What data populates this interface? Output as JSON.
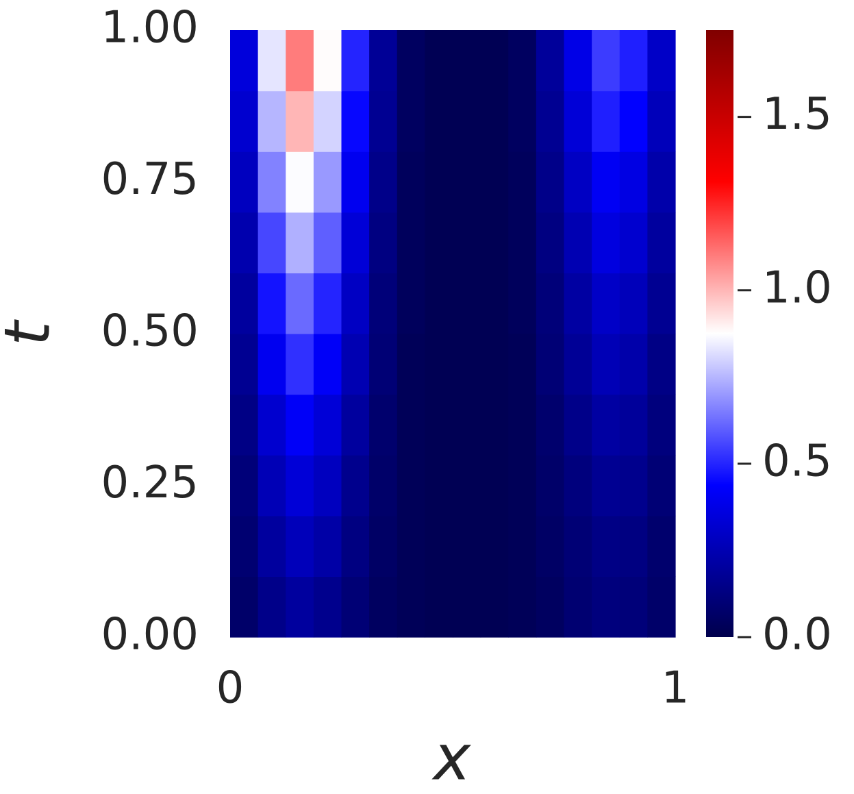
{
  "chart_data": {
    "type": "heatmap",
    "xlabel": "x",
    "ylabel": "t",
    "xlim": [
      0,
      1
    ],
    "xticks": [
      0,
      1
    ],
    "ylim": [
      0,
      1
    ],
    "yticks": [
      {
        "value": 0,
        "label": "0.00"
      },
      {
        "value": 0.25,
        "label": "0.25"
      },
      {
        "value": 0.5,
        "label": "0.50"
      },
      {
        "value": 0.75,
        "label": "0.75"
      },
      {
        "value": 1,
        "label": "1.00"
      }
    ],
    "clim": [
      0,
      1.75
    ],
    "cticks": [
      {
        "value": 0,
        "label": "0.0"
      },
      {
        "value": 0.5,
        "label": "0.5"
      },
      {
        "value": 1,
        "label": "1.0"
      },
      {
        "value": 1.5,
        "label": "1.5"
      }
    ],
    "colors": [
      "#00004c",
      "#0000ff",
      "#ffffff",
      "#ff0000",
      "#800000"
    ],
    "z": [
      [
        0.07,
        0.15,
        0.2,
        0.16,
        0.1,
        0.05,
        0.03,
        0.02,
        0.02,
        0.02,
        0.03,
        0.05,
        0.09,
        0.12,
        0.11,
        0.07
      ],
      [
        0.09,
        0.2,
        0.27,
        0.22,
        0.13,
        0.06,
        0.03,
        0.02,
        0.02,
        0.02,
        0.03,
        0.06,
        0.1,
        0.14,
        0.13,
        0.08
      ],
      [
        0.11,
        0.26,
        0.34,
        0.28,
        0.16,
        0.07,
        0.03,
        0.02,
        0.02,
        0.02,
        0.03,
        0.07,
        0.12,
        0.17,
        0.16,
        0.1
      ],
      [
        0.14,
        0.32,
        0.42,
        0.34,
        0.2,
        0.08,
        0.03,
        0.02,
        0.02,
        0.02,
        0.03,
        0.08,
        0.15,
        0.21,
        0.19,
        0.12
      ],
      [
        0.17,
        0.4,
        0.52,
        0.42,
        0.25,
        0.1,
        0.03,
        0.02,
        0.02,
        0.02,
        0.03,
        0.1,
        0.18,
        0.26,
        0.23,
        0.14
      ],
      [
        0.2,
        0.47,
        0.62,
        0.5,
        0.29,
        0.11,
        0.04,
        0.02,
        0.02,
        0.02,
        0.04,
        0.11,
        0.21,
        0.3,
        0.27,
        0.17
      ],
      [
        0.24,
        0.56,
        0.74,
        0.6,
        0.34,
        0.13,
        0.04,
        0.02,
        0.02,
        0.02,
        0.04,
        0.13,
        0.25,
        0.36,
        0.32,
        0.2
      ],
      [
        0.28,
        0.66,
        0.87,
        0.7,
        0.4,
        0.15,
        0.04,
        0.02,
        0.02,
        0.02,
        0.04,
        0.15,
        0.29,
        0.41,
        0.37,
        0.23
      ],
      [
        0.32,
        0.75,
        1.0,
        0.8,
        0.45,
        0.17,
        0.05,
        0.02,
        0.02,
        0.02,
        0.05,
        0.17,
        0.34,
        0.49,
        0.44,
        0.27
      ],
      [
        0.35,
        0.83,
        1.1,
        0.88,
        0.5,
        0.18,
        0.05,
        0.02,
        0.02,
        0.02,
        0.05,
        0.19,
        0.38,
        0.54,
        0.49,
        0.3
      ]
    ]
  }
}
